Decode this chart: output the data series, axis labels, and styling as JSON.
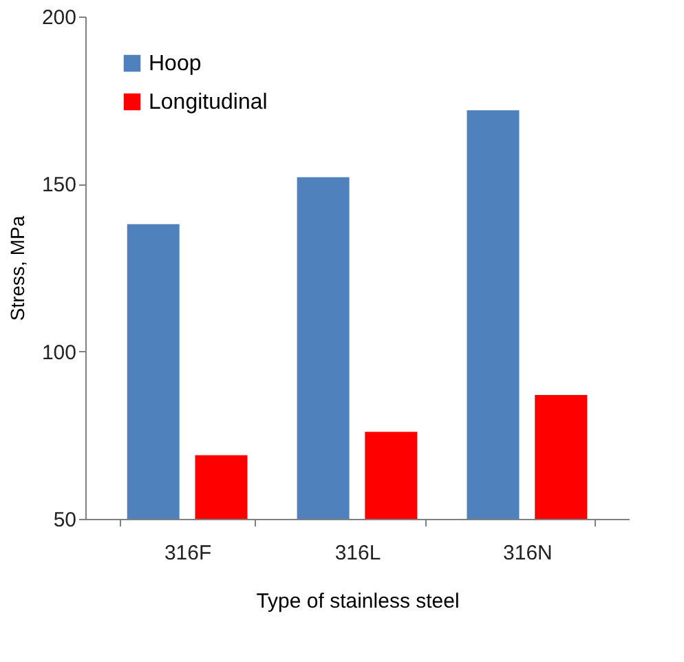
{
  "chart_data": {
    "type": "bar",
    "xlabel": "Type of stainless steel",
    "ylabel": "Stress, MPa",
    "categories": [
      "316F",
      "316L",
      "316N"
    ],
    "series": [
      {
        "name": "Hoop",
        "color": "#4f81bd",
        "values": [
          138,
          152,
          172
        ]
      },
      {
        "name": "Longitudinal",
        "color": "#ff0000",
        "values": [
          69,
          76,
          87
        ]
      }
    ],
    "ylim": [
      50,
      200
    ],
    "yticks": [
      50,
      100,
      150,
      200
    ],
    "grid": false,
    "legend": "top left"
  }
}
